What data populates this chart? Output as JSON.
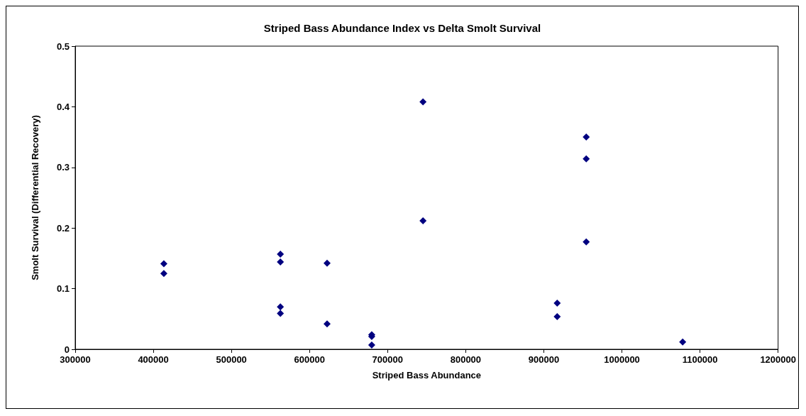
{
  "chart_data": {
    "type": "scatter",
    "title": "Striped Bass Abundance Index vs Delta Smolt Survival",
    "xlabel": "Striped Bass Abundance",
    "ylabel": "Smolt Survival (Differential Recovery)",
    "x": [
      413500,
      413500,
      562700,
      562700,
      562700,
      562700,
      622500,
      622500,
      679700,
      679700,
      679700,
      745300,
      745300,
      917100,
      917100,
      954300,
      954300,
      954300,
      1077800
    ],
    "values": [
      0.141,
      0.125,
      0.157,
      0.144,
      0.07,
      0.059,
      0.142,
      0.042,
      0.024,
      0.021,
      0.007,
      0.408,
      0.212,
      0.076,
      0.054,
      0.35,
      0.314,
      0.177,
      0.012
    ],
    "color": "#000080",
    "marker": "diamond",
    "xlim": [
      300000,
      1200000
    ],
    "xticks": [
      300000,
      400000,
      500000,
      600000,
      700000,
      800000,
      900000,
      1000000,
      1100000,
      1200000
    ],
    "ylim": [
      0,
      0.5
    ],
    "yticks": [
      0,
      0.1,
      0.2,
      0.3,
      0.4,
      0.5
    ],
    "grid": false
  }
}
